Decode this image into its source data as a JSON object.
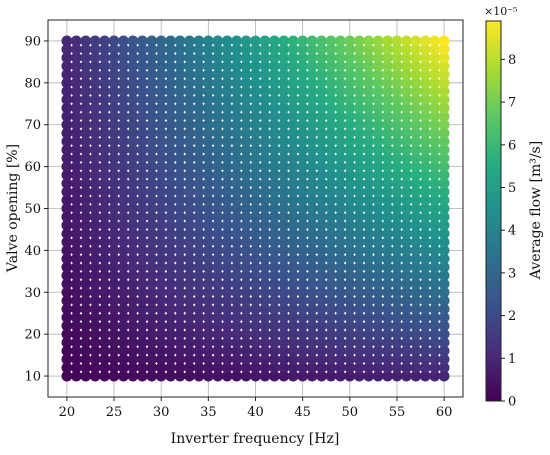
{
  "chart_data": {
    "type": "scatter",
    "xlabel": "Inverter frequency [Hz]",
    "ylabel": "Valve opening [%]",
    "xlim": [
      18,
      62
    ],
    "ylim": [
      5,
      95
    ],
    "xticks": [
      20,
      25,
      30,
      35,
      40,
      45,
      50,
      55,
      60
    ],
    "yticks": [
      10,
      20,
      30,
      40,
      50,
      60,
      70,
      80,
      90
    ],
    "x_grid": {
      "start": 20,
      "stop": 60,
      "step": 1
    },
    "y_grid": {
      "start": 10,
      "stop": 90,
      "step": 2
    },
    "value_model": {
      "description": "Average flow approx. proportional to frequency and valve opening",
      "max_value": 8.9e-05
    },
    "grid": true,
    "colorbar": {
      "label": "Average flow [m³/s]",
      "scale_label": "×10⁻⁵",
      "ticks": [
        0,
        1,
        2,
        3,
        4,
        5,
        6,
        7,
        8
      ],
      "range": [
        0,
        8.9
      ],
      "colormap": "viridis"
    }
  }
}
